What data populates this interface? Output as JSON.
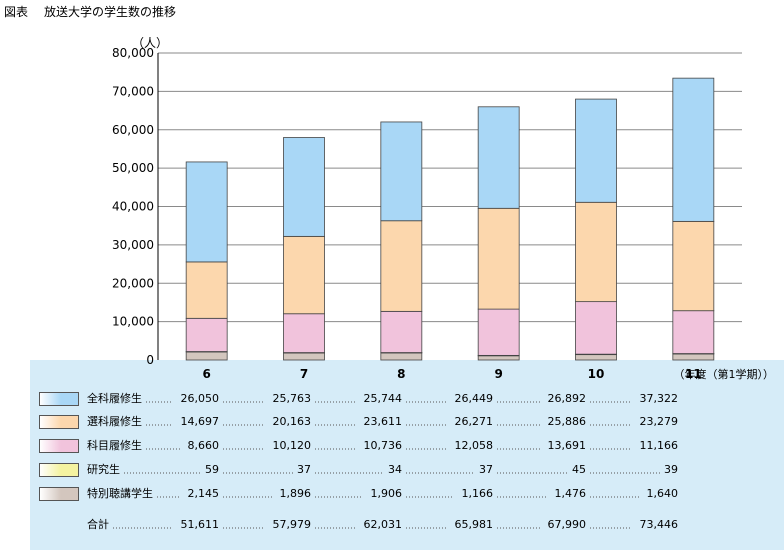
{
  "title": "図表",
  "subtitle": "放送大学の学生数の推移",
  "colors": {
    "全科履修生": "#a9d7f6",
    "選科履修生": "#fcd7ad",
    "科目履修生": "#f1c3dc",
    "研究生": "#f4f3a0",
    "特別聴講学生": "#d3c6be"
  },
  "chart_data": {
    "type": "bar",
    "stacked": true,
    "categories": [
      "6",
      "7",
      "8",
      "9",
      "10",
      "11"
    ],
    "xlabel": "（年度（第1学期））",
    "ylabel": "（人）",
    "ylim": [
      0,
      80000
    ],
    "yticks": [
      "0",
      "10,000",
      "20,000",
      "30,000",
      "40,000",
      "50,000",
      "60,000",
      "70,000",
      "80,000"
    ],
    "grid": true,
    "series": [
      {
        "name": "特別聴講学生",
        "values": [
          2145,
          1896,
          1906,
          1166,
          1476,
          1640
        ],
        "labels": [
          "2,145",
          "1,896",
          "1,906",
          "1,166",
          "1,476",
          "1,640"
        ]
      },
      {
        "name": "研究生",
        "values": [
          59,
          37,
          34,
          37,
          45,
          39
        ],
        "labels": [
          "59",
          "37",
          "34",
          "37",
          "45",
          "39"
        ]
      },
      {
        "name": "科目履修生",
        "values": [
          8660,
          10120,
          10736,
          12058,
          13691,
          11166
        ],
        "labels": [
          "8,660",
          "10,120",
          "10,736",
          "12,058",
          "13,691",
          "11,166"
        ]
      },
      {
        "name": "選科履修生",
        "values": [
          14697,
          20163,
          23611,
          26271,
          25886,
          23279
        ],
        "labels": [
          "14,697",
          "20,163",
          "23,611",
          "26,271",
          "25,886",
          "23,279"
        ]
      },
      {
        "name": "全科履修生",
        "values": [
          26050,
          25763,
          25744,
          26449,
          26892,
          37322
        ],
        "labels": [
          "26,050",
          "25,763",
          "25,744",
          "26,449",
          "26,892",
          "37,322"
        ]
      }
    ],
    "table_order": [
      "全科履修生",
      "選科履修生",
      "科目履修生",
      "研究生",
      "特別聴講学生"
    ],
    "totals": {
      "name": "合計",
      "values": [
        51611,
        57979,
        62031,
        65981,
        67990,
        73446
      ],
      "labels": [
        "51,611",
        "57,979",
        "62,031",
        "65,981",
        "67,990",
        "73,446"
      ]
    }
  }
}
